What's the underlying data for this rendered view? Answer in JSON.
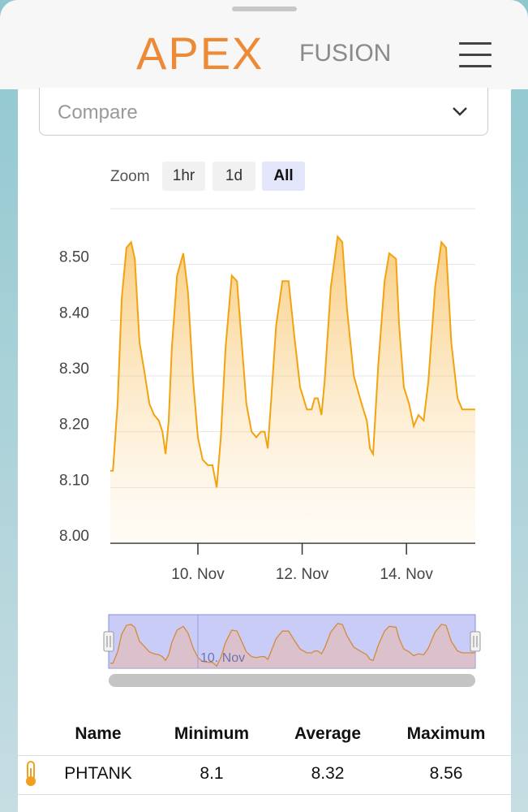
{
  "header": {
    "brand": "APEX",
    "brand_suffix": "FUSION"
  },
  "compare": {
    "placeholder": "Compare"
  },
  "zoom": {
    "label": "Zoom",
    "buttons": [
      "1hr",
      "1d",
      "All"
    ],
    "active": 2
  },
  "chart_data": {
    "type": "area",
    "color": "#f2a30f",
    "x": [
      8.32,
      8.37,
      8.46,
      8.54,
      8.63,
      8.72,
      8.79,
      8.88,
      8.97,
      9.07,
      9.16,
      9.25,
      9.32,
      9.38,
      9.44,
      9.5,
      9.6,
      9.72,
      9.81,
      9.91,
      10.0,
      10.09,
      10.19,
      10.28,
      10.36,
      10.44,
      10.53,
      10.65,
      10.75,
      10.84,
      10.93,
      11.03,
      11.12,
      11.21,
      11.28,
      11.34,
      11.4,
      11.5,
      11.62,
      11.74,
      11.84,
      11.96,
      12.09,
      12.18,
      12.24,
      12.3,
      12.37,
      12.43,
      12.55,
      12.68,
      12.77,
      12.86,
      12.99,
      13.14,
      13.24,
      13.3,
      13.36,
      13.46,
      13.58,
      13.67,
      13.8,
      13.86,
      13.95,
      14.05,
      14.14,
      14.23,
      14.33,
      14.42,
      14.55,
      14.67,
      14.76,
      14.86,
      14.98,
      15.07,
      15.32
    ],
    "values": [
      8.13,
      8.13,
      8.25,
      8.44,
      8.53,
      8.54,
      8.51,
      8.36,
      8.31,
      8.25,
      8.23,
      8.22,
      8.2,
      8.16,
      8.22,
      8.35,
      8.48,
      8.52,
      8.45,
      8.29,
      8.19,
      8.15,
      8.14,
      8.14,
      8.1,
      8.19,
      8.35,
      8.48,
      8.47,
      8.36,
      8.25,
      8.2,
      8.19,
      8.2,
      8.2,
      8.17,
      8.25,
      8.39,
      8.47,
      8.47,
      8.38,
      8.28,
      8.24,
      8.24,
      8.26,
      8.26,
      8.23,
      8.29,
      8.46,
      8.55,
      8.54,
      8.42,
      8.3,
      8.25,
      8.22,
      8.17,
      8.16,
      8.32,
      8.47,
      8.52,
      8.51,
      8.39,
      8.28,
      8.25,
      8.21,
      8.23,
      8.22,
      8.29,
      8.46,
      8.54,
      8.53,
      8.36,
      8.26,
      8.24,
      8.24
    ],
    "xlim": [
      8.32,
      15.32
    ],
    "xticks": [
      {
        "value": 10,
        "label": "10. Nov"
      },
      {
        "value": 12,
        "label": "12. Nov"
      },
      {
        "value": 14,
        "label": "14. Nov"
      }
    ],
    "ylim": [
      8.0,
      8.6
    ],
    "yticks": [
      {
        "value": 8.0,
        "label": "8.00"
      },
      {
        "value": 8.1,
        "label": "8.10"
      },
      {
        "value": 8.2,
        "label": "8.20"
      },
      {
        "value": 8.3,
        "label": "8.30"
      },
      {
        "value": 8.4,
        "label": "8.40"
      },
      {
        "value": 8.5,
        "label": "8.50"
      }
    ],
    "grid": true
  },
  "table": {
    "columns": [
      "Name",
      "Minimum",
      "Average",
      "Maximum"
    ],
    "rows": [
      [
        "PHTANK",
        "8.1",
        "8.32",
        "8.56"
      ]
    ]
  }
}
